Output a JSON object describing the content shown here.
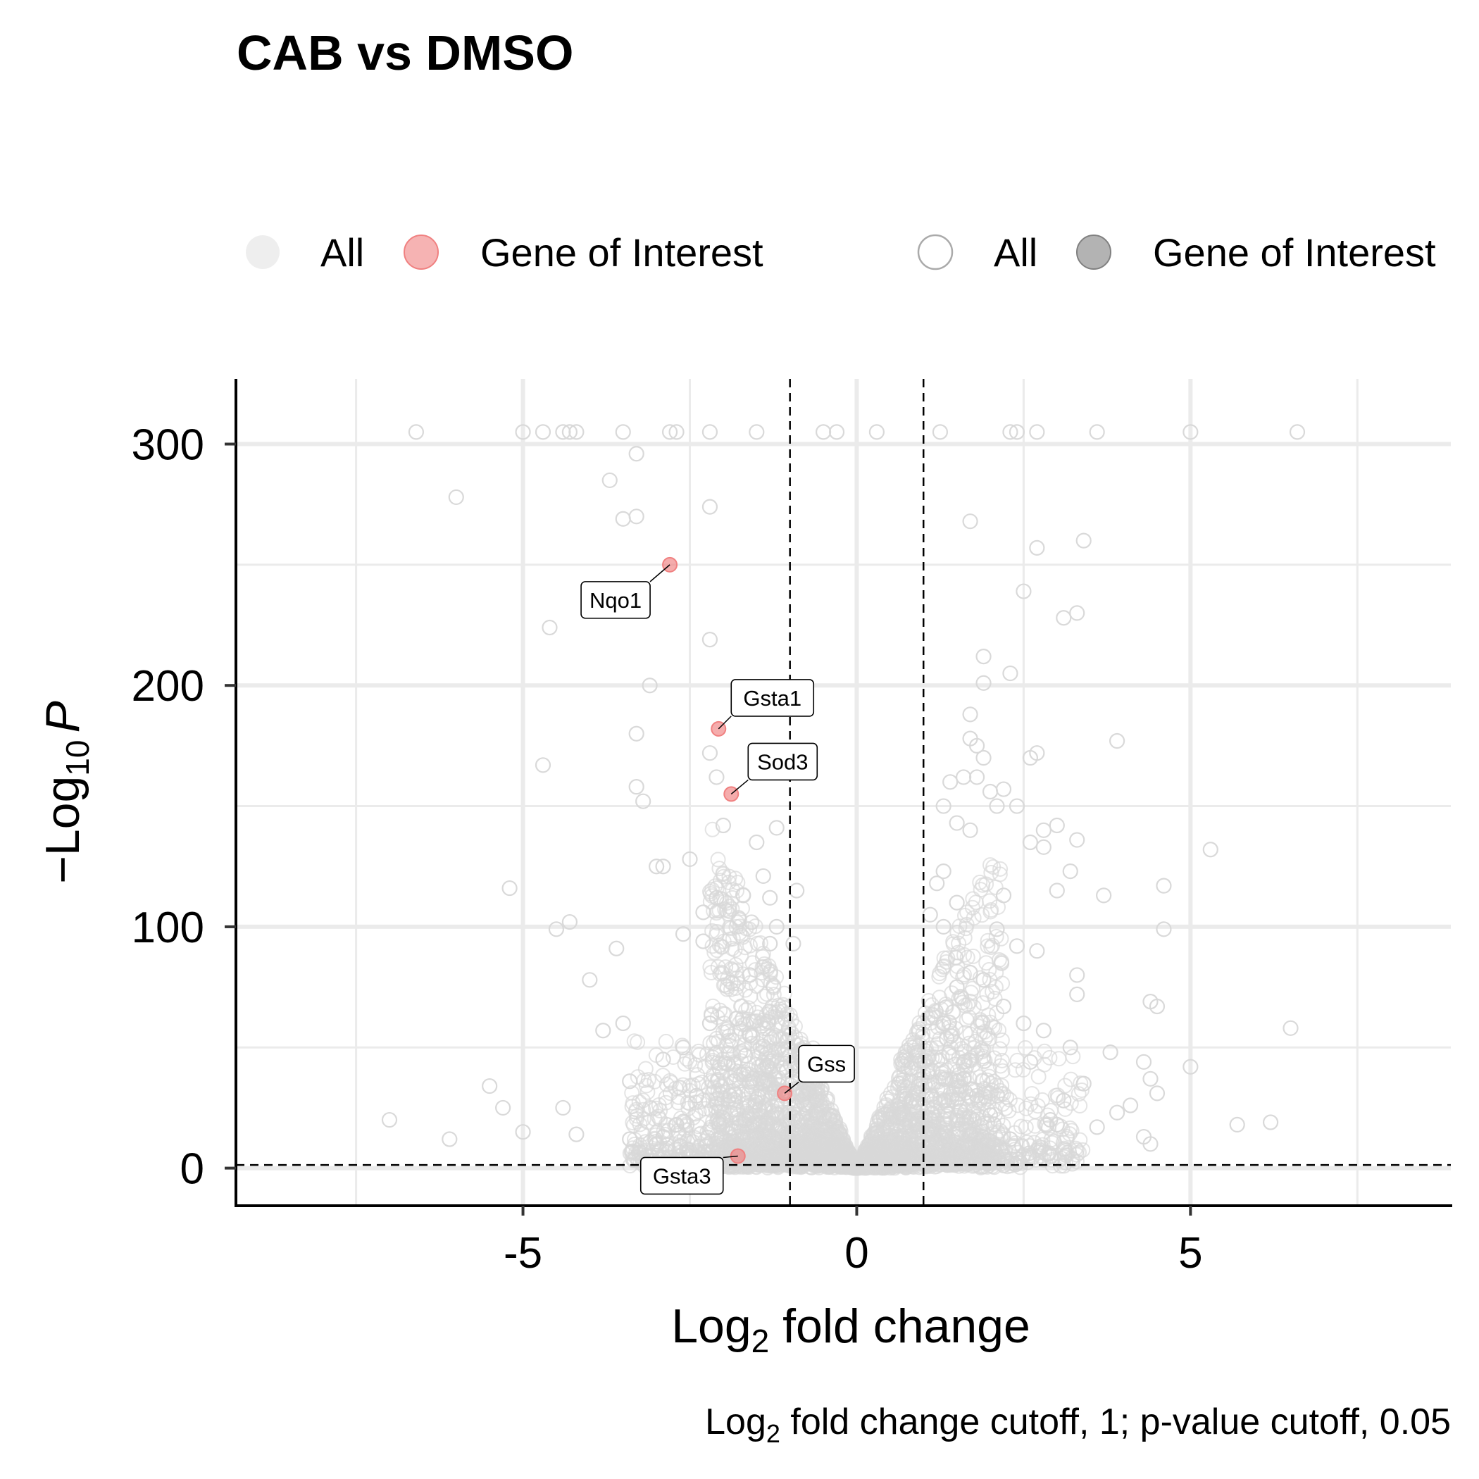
{
  "title": "CAB vs DMSO",
  "caption": {
    "prefix": "Log",
    "sub": "2",
    "suffix": " fold change cutoff, 1; p-value cutoff, 0.05"
  },
  "legend": {
    "colour_all": "All",
    "colour_gene": "Gene of Interest",
    "shape_all": "All",
    "shape_gene": "Gene of Interest"
  },
  "xaxis": {
    "title_prefix": "Log",
    "title_sub": "2",
    "title_suffix": " fold change",
    "ticks": [
      {
        "value": -5,
        "label": "-5"
      },
      {
        "value": 0,
        "label": "0"
      },
      {
        "value": 5,
        "label": "5"
      }
    ]
  },
  "yaxis": {
    "title_prefix": "−Log",
    "title_sub": "10",
    "title_italic": "P",
    "ticks": [
      {
        "value": 0,
        "label": "0"
      },
      {
        "value": 100,
        "label": "100"
      },
      {
        "value": 200,
        "label": "200"
      },
      {
        "value": 300,
        "label": "300"
      }
    ]
  },
  "colors": {
    "all_points": "#d9d9d9",
    "gene_of_interest": "#f08080",
    "shape_legend_gene": "#999999",
    "grid": "#ebebeb"
  },
  "chart_data": {
    "type": "scatter",
    "title": "CAB vs DMSO",
    "xlim": [
      -9.3,
      8.9
    ],
    "ylim": [
      -15,
      327
    ],
    "x_minor_ticks": [
      -7.5,
      -2.5,
      2.5,
      7.5
    ],
    "y_minor_ticks": [
      50,
      150,
      250
    ],
    "grid": true,
    "legend_position": "top",
    "cutoffs": {
      "log2fc": 1,
      "pvalue": 0.05,
      "neg_log10_p_line": 1.3
    },
    "series": [
      {
        "name": "Gene of Interest",
        "points": [
          {
            "label": "Nqo1",
            "x": -2.8,
            "y": 250
          },
          {
            "label": "Gsta1",
            "x": -2.07,
            "y": 182
          },
          {
            "label": "Sod3",
            "x": -1.88,
            "y": 155
          },
          {
            "label": "Gss",
            "x": -1.08,
            "y": 31
          },
          {
            "label": "Gsta3",
            "x": -1.78,
            "y": 5
          }
        ]
      },
      {
        "name": "All",
        "points_summary": "thousands of genes forming a volcano shape",
        "points": [
          [
            -6.0,
            278
          ],
          [
            -4.6,
            224
          ],
          [
            -4.7,
            167
          ],
          [
            -5.2,
            116
          ],
          [
            -4.5,
            99
          ],
          [
            -4.0,
            78
          ],
          [
            -4.3,
            102
          ],
          [
            -3.6,
            91
          ],
          [
            -3.5,
            60
          ],
          [
            -3.8,
            57
          ],
          [
            -5.5,
            34
          ],
          [
            -5.3,
            25
          ],
          [
            -7.0,
            20
          ],
          [
            -4.4,
            25
          ],
          [
            -4.2,
            14
          ],
          [
            -3.4,
            12
          ],
          [
            -6.1,
            12
          ],
          [
            -5.0,
            15
          ],
          [
            -3.3,
            296
          ],
          [
            -2.7,
            305
          ],
          [
            -3.7,
            285
          ],
          [
            -3.5,
            269
          ],
          [
            -3.3,
            270
          ],
          [
            -2.2,
            274
          ],
          [
            -3.3,
            180
          ],
          [
            -3.1,
            200
          ],
          [
            -3.3,
            158
          ],
          [
            -3.2,
            152
          ],
          [
            -3.0,
            125
          ],
          [
            -2.9,
            125
          ],
          [
            -2.2,
            172
          ],
          [
            -2.1,
            162
          ],
          [
            -2.0,
            142
          ],
          [
            -2.5,
            128
          ],
          [
            -2.1,
            112
          ],
          [
            -2.3,
            106
          ],
          [
            -2.6,
            97
          ],
          [
            -2.3,
            94
          ],
          [
            -1.7,
            113
          ],
          [
            -1.5,
            135
          ],
          [
            -1.4,
            121
          ],
          [
            -1.3,
            112
          ],
          [
            -1.2,
            100
          ],
          [
            -1.3,
            93
          ],
          [
            -1.6,
            80
          ],
          [
            -1.8,
            62
          ],
          [
            -1.2,
            141
          ],
          [
            -0.9,
            115
          ],
          [
            -0.95,
            93
          ],
          [
            -2.2,
            219
          ],
          [
            -3.4,
            36
          ],
          [
            -2.9,
            45
          ],
          [
            -2.6,
            50
          ],
          [
            -2.7,
            18
          ],
          [
            -2.9,
            13
          ],
          [
            -1.6,
            55
          ],
          [
            -1.9,
            30
          ],
          [
            -2.4,
            30
          ],
          [
            -3.0,
            10
          ],
          [
            -2.2,
            60
          ],
          [
            -5.0,
            305
          ],
          [
            -4.7,
            305
          ],
          [
            -4.4,
            305
          ],
          [
            -4.3,
            305
          ],
          [
            -4.2,
            305
          ],
          [
            -3.5,
            305
          ],
          [
            -2.8,
            305
          ],
          [
            -2.2,
            305
          ],
          [
            -1.5,
            305
          ],
          [
            -0.5,
            305
          ],
          [
            1.7,
            268
          ],
          [
            2.5,
            239
          ],
          [
            2.7,
            257
          ],
          [
            3.4,
            260
          ],
          [
            3.3,
            230
          ],
          [
            3.1,
            228
          ],
          [
            1.9,
            212
          ],
          [
            1.9,
            201
          ],
          [
            2.3,
            205
          ],
          [
            1.7,
            188
          ],
          [
            1.7,
            178
          ],
          [
            1.8,
            175
          ],
          [
            1.9,
            170
          ],
          [
            2.6,
            170
          ],
          [
            2.7,
            172
          ],
          [
            3.9,
            177
          ],
          [
            1.6,
            162
          ],
          [
            1.8,
            162
          ],
          [
            2.0,
            156
          ],
          [
            2.1,
            150
          ],
          [
            2.2,
            157
          ],
          [
            2.4,
            150
          ],
          [
            1.4,
            160
          ],
          [
            1.3,
            150
          ],
          [
            1.5,
            143
          ],
          [
            1.7,
            140
          ],
          [
            2.8,
            140
          ],
          [
            3.0,
            142
          ],
          [
            3.3,
            136
          ],
          [
            2.6,
            135
          ],
          [
            2.8,
            133
          ],
          [
            5.3,
            132
          ],
          [
            3.2,
            123
          ],
          [
            4.6,
            117
          ],
          [
            3.7,
            113
          ],
          [
            3.0,
            115
          ],
          [
            2.2,
            113
          ],
          [
            1.3,
            123
          ],
          [
            1.2,
            118
          ],
          [
            1.5,
            110
          ],
          [
            1.1,
            105
          ],
          [
            1.3,
            100
          ],
          [
            2.1,
            99
          ],
          [
            2.4,
            92
          ],
          [
            2.7,
            90
          ],
          [
            4.6,
            99
          ],
          [
            3.3,
            80
          ],
          [
            3.3,
            72
          ],
          [
            4.4,
            69
          ],
          [
            4.5,
            67
          ],
          [
            1.5,
            75
          ],
          [
            1.7,
            81
          ],
          [
            1.9,
            78
          ],
          [
            2.2,
            67
          ],
          [
            2.5,
            60
          ],
          [
            2.8,
            57
          ],
          [
            3.2,
            50
          ],
          [
            3.8,
            48
          ],
          [
            4.3,
            44
          ],
          [
            4.4,
            37
          ],
          [
            4.5,
            31
          ],
          [
            3.9,
            23
          ],
          [
            4.1,
            26
          ],
          [
            3.4,
            35
          ],
          [
            3.1,
            28
          ],
          [
            2.9,
            20
          ],
          [
            5.0,
            42
          ],
          [
            5.7,
            18
          ],
          [
            6.2,
            19
          ],
          [
            6.5,
            58
          ],
          [
            4.3,
            13
          ],
          [
            4.4,
            10
          ],
          [
            2.3,
            12
          ],
          [
            2.0,
            22
          ],
          [
            1.8,
            30
          ],
          [
            1.6,
            37
          ],
          [
            2.6,
            44
          ],
          [
            3.6,
            17
          ],
          [
            3.0,
            18
          ],
          [
            1.3,
            60
          ],
          [
            1.25,
            305
          ],
          [
            2.3,
            305
          ],
          [
            2.4,
            305
          ],
          [
            2.7,
            305
          ],
          [
            3.6,
            305
          ],
          [
            5.0,
            305
          ],
          [
            -0.3,
            305
          ],
          [
            0.3,
            305
          ],
          [
            -6.6,
            305
          ],
          [
            6.6,
            305
          ]
        ]
      }
    ]
  }
}
